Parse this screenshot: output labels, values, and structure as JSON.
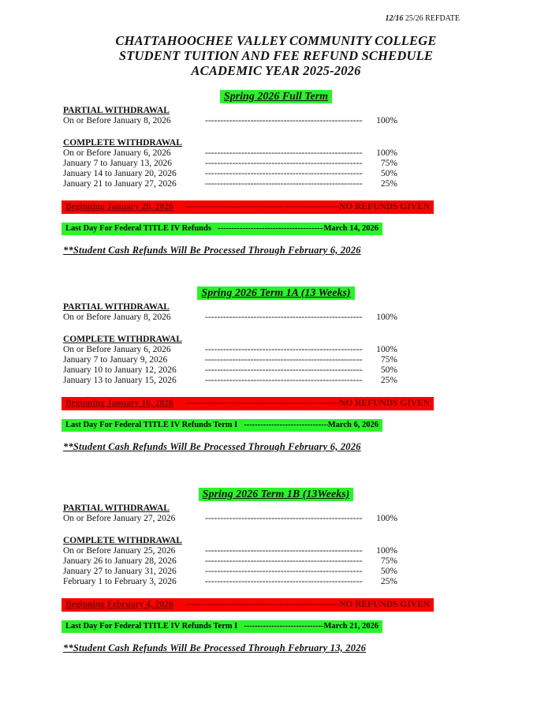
{
  "header": {
    "ref_bold": "12/16",
    "ref_rest": " 25/26 REFDATE"
  },
  "title_lines": [
    "CHATTAHOOCHEE VALLEY COMMUNITY COLLEGE",
    "STUDENT TUITION AND FEE REFUND SCHEDULE",
    "ACADEMIC YEAR 2025-2026"
  ],
  "labels": {
    "partial": "PARTIAL WITHDRAWAL",
    "complete": "COMPLETE WITHDRAWAL",
    "no_refunds": "NO REFUNDS GIVEN",
    "leader": "--------------------------------------------------------------------------------------------------------------------------------------------"
  },
  "colors": {
    "green": "#2bf32b",
    "red": "#f80400",
    "darkred": "#7c0000",
    "text": "#121212"
  },
  "sections": [
    {
      "title": "Spring 2026 Full Term",
      "partial_rows": [
        {
          "label": "On or Before January 8, 2026",
          "value": "100%"
        }
      ],
      "complete_rows": [
        {
          "label": "On or Before January 6, 2026",
          "value": "100%"
        },
        {
          "label": "January 7 to January 13, 2026",
          "value": "75%"
        },
        {
          "label": "January 14 to January 20, 2026",
          "value": "50%"
        },
        {
          "label": "January 21 to January 27, 2026",
          "value": "25%"
        }
      ],
      "no_refund_start": "Beginning January 28, 2026",
      "title_iv_label": "Last Day For Federal TITLE IV Refunds",
      "title_iv_date": "March 14, 2026",
      "cash_note": "**Student Cash Refunds Will Be Processed Through February 6, 2026"
    },
    {
      "title": "Spring 2026 Term 1A (13 Weeks)",
      "partial_rows": [
        {
          "label": "On or Before January 8, 2026",
          "value": "100%"
        }
      ],
      "complete_rows": [
        {
          "label": "On or Before January 6, 2026",
          "value": "100%"
        },
        {
          "label": "January 7 to January 9, 2026",
          "value": "75%"
        },
        {
          "label": "January 10 to January 12, 2026",
          "value": "50%"
        },
        {
          "label": "January 13 to January 15, 2026",
          "value": "25%"
        }
      ],
      "no_refund_start": "Beginning January 16, 2026",
      "title_iv_label": "Last Day For Federal TITLE IV Refunds Term I",
      "title_iv_date": "March 6, 2026",
      "cash_note": "**Student Cash Refunds Will Be Processed Through February 6, 2026"
    },
    {
      "title": "Spring 2026 Term 1B (13Weeks)",
      "partial_rows": [
        {
          "label": "On or Before January 27, 2026",
          "value": "100%"
        }
      ],
      "complete_rows": [
        {
          "label": "On or Before January 25, 2026",
          "value": "100%"
        },
        {
          "label": "January 26 to January 28, 2026",
          "value": "75%"
        },
        {
          "label": "January 27 to January 31, 2026",
          "value": "50%"
        },
        {
          "label": "February 1 to February 3, 2026",
          "value": "25%"
        }
      ],
      "no_refund_start": "Beginning February 4, 2026",
      "title_iv_label": "Last Day For Federal TITLE IV Refunds Term I",
      "title_iv_date": "March 21, 2026",
      "cash_note": "**Student Cash Refunds Will Be Processed Through February 13, 2026"
    }
  ]
}
